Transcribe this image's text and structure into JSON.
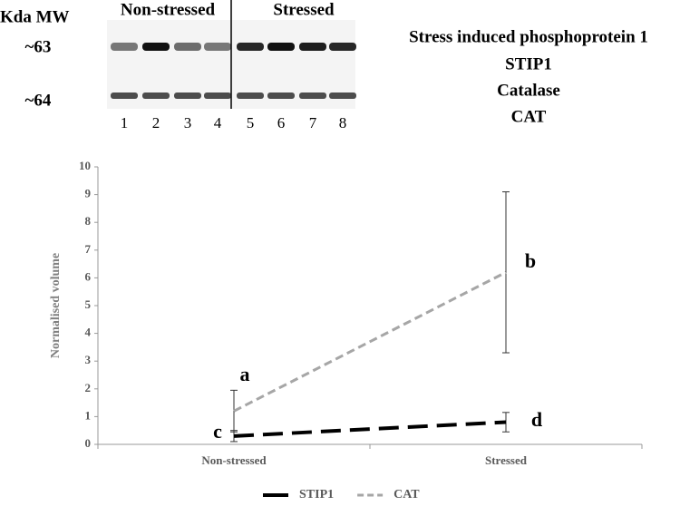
{
  "blot": {
    "mw_header": "Kda MW",
    "groups": [
      "Non-stressed",
      "Stressed"
    ],
    "mw": [
      "~63",
      "~64"
    ],
    "lanes": [
      "1",
      "2",
      "3",
      "4",
      "5",
      "6",
      "7",
      "8"
    ],
    "proteins": [
      {
        "name": "Stress induced phosphoprotein 1",
        "symbol": "STIP1"
      },
      {
        "name": "Catalase",
        "symbol": "CAT"
      }
    ]
  },
  "chart_data": {
    "type": "line",
    "ylabel": "Normalised volume",
    "categories": [
      "Non-stressed",
      "Stressed"
    ],
    "series": [
      {
        "name": "STIP1",
        "color": "#000000",
        "values": [
          0.3,
          0.8
        ],
        "errors": [
          0.2,
          0.35
        ]
      },
      {
        "name": "CAT",
        "color": "#a6a6a6",
        "values": [
          1.2,
          6.2
        ],
        "errors": [
          0.75,
          2.9
        ]
      }
    ],
    "annotations": [
      "a",
      "b",
      "c",
      "d"
    ],
    "ylim": [
      0,
      10
    ],
    "yticks": [
      0,
      1,
      2,
      3,
      4,
      5,
      6,
      7,
      8,
      9,
      10
    ],
    "legend": "bottom"
  }
}
